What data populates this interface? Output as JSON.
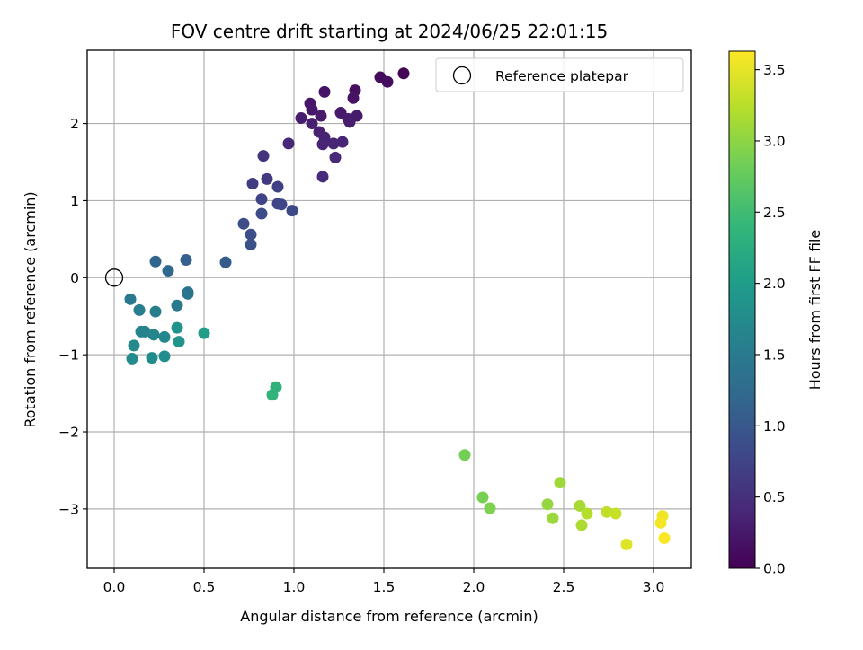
{
  "chart_data": {
    "type": "scatter",
    "title": "FOV centre drift starting at 2024/06/25 22:01:15",
    "xlabel": "Angular distance from reference (arcmin)",
    "ylabel": "Rotation from reference (arcmin)",
    "xlim": [
      -0.15,
      3.21
    ],
    "ylim": [
      -3.77,
      2.95
    ],
    "xticks": [
      0.0,
      0.5,
      1.0,
      1.5,
      2.0,
      2.5,
      3.0
    ],
    "xtick_labels": [
      "0.0",
      "0.5",
      "1.0",
      "1.5",
      "2.0",
      "2.5",
      "3.0"
    ],
    "yticks": [
      -3,
      -2,
      -1,
      0,
      1,
      2
    ],
    "ytick_labels": [
      "−3",
      "−2",
      "−1",
      "0",
      "1",
      "2"
    ],
    "grid": true,
    "legend": {
      "placement": "top-right",
      "entries": [
        "Reference platepar"
      ]
    },
    "reference_point": {
      "x": 0.0,
      "y": 0.0,
      "label": "Reference platepar"
    },
    "colorbar": {
      "label": "Hours from first FF file",
      "colormap": "viridis",
      "range": [
        0.0,
        3.63
      ],
      "ticks": [
        0.0,
        0.5,
        1.0,
        1.5,
        2.0,
        2.5,
        3.0,
        3.5
      ],
      "tick_labels": [
        "0.0",
        "0.5",
        "1.0",
        "1.5",
        "2.0",
        "2.5",
        "3.0",
        "3.5"
      ]
    },
    "points": [
      {
        "x": 1.61,
        "y": 2.65,
        "c": 0.05
      },
      {
        "x": 1.48,
        "y": 2.6,
        "c": 0.1
      },
      {
        "x": 1.52,
        "y": 2.54,
        "c": 0.12
      },
      {
        "x": 1.34,
        "y": 2.43,
        "c": 0.15
      },
      {
        "x": 1.33,
        "y": 2.33,
        "c": 0.17
      },
      {
        "x": 1.17,
        "y": 2.41,
        "c": 0.2
      },
      {
        "x": 1.09,
        "y": 2.26,
        "c": 0.22
      },
      {
        "x": 1.1,
        "y": 2.18,
        "c": 0.24
      },
      {
        "x": 1.26,
        "y": 2.14,
        "c": 0.25
      },
      {
        "x": 1.15,
        "y": 2.1,
        "c": 0.26
      },
      {
        "x": 1.35,
        "y": 2.1,
        "c": 0.27
      },
      {
        "x": 1.3,
        "y": 2.06,
        "c": 0.28
      },
      {
        "x": 1.31,
        "y": 2.02,
        "c": 0.29
      },
      {
        "x": 1.04,
        "y": 2.07,
        "c": 0.3
      },
      {
        "x": 1.1,
        "y": 2.0,
        "c": 0.31
      },
      {
        "x": 1.14,
        "y": 1.89,
        "c": 0.33
      },
      {
        "x": 1.17,
        "y": 1.82,
        "c": 0.35
      },
      {
        "x": 1.16,
        "y": 1.73,
        "c": 0.36
      },
      {
        "x": 1.22,
        "y": 1.74,
        "c": 0.37
      },
      {
        "x": 1.27,
        "y": 1.76,
        "c": 0.38
      },
      {
        "x": 0.97,
        "y": 1.74,
        "c": 0.4
      },
      {
        "x": 1.23,
        "y": 1.56,
        "c": 0.42
      },
      {
        "x": 1.16,
        "y": 1.31,
        "c": 0.45
      },
      {
        "x": 0.83,
        "y": 1.58,
        "c": 0.55
      },
      {
        "x": 0.85,
        "y": 1.28,
        "c": 0.6
      },
      {
        "x": 0.77,
        "y": 1.22,
        "c": 0.65
      },
      {
        "x": 0.91,
        "y": 1.18,
        "c": 0.68
      },
      {
        "x": 0.82,
        "y": 1.02,
        "c": 0.72
      },
      {
        "x": 0.91,
        "y": 0.96,
        "c": 0.75
      },
      {
        "x": 0.93,
        "y": 0.95,
        "c": 0.77
      },
      {
        "x": 0.99,
        "y": 0.87,
        "c": 0.8
      },
      {
        "x": 0.82,
        "y": 0.83,
        "c": 0.82
      },
      {
        "x": 0.72,
        "y": 0.7,
        "c": 0.85
      },
      {
        "x": 0.76,
        "y": 0.56,
        "c": 0.88
      },
      {
        "x": 0.76,
        "y": 0.43,
        "c": 0.9
      },
      {
        "x": 0.62,
        "y": 0.2,
        "c": 1.05
      },
      {
        "x": 0.4,
        "y": 0.23,
        "c": 1.12
      },
      {
        "x": 0.23,
        "y": 0.21,
        "c": 1.18
      },
      {
        "x": 0.3,
        "y": 0.09,
        "c": 1.22
      },
      {
        "x": 0.41,
        "y": -0.19,
        "c": 1.38
      },
      {
        "x": 0.41,
        "y": -0.21,
        "c": 1.4
      },
      {
        "x": 0.35,
        "y": -0.36,
        "c": 1.45
      },
      {
        "x": 0.09,
        "y": -0.28,
        "c": 1.48
      },
      {
        "x": 0.14,
        "y": -0.42,
        "c": 1.52
      },
      {
        "x": 0.23,
        "y": -0.44,
        "c": 1.55
      },
      {
        "x": 0.15,
        "y": -0.7,
        "c": 1.6
      },
      {
        "x": 0.17,
        "y": -0.7,
        "c": 1.62
      },
      {
        "x": 0.22,
        "y": -0.74,
        "c": 1.65
      },
      {
        "x": 0.28,
        "y": -0.77,
        "c": 1.68
      },
      {
        "x": 0.11,
        "y": -0.88,
        "c": 1.7
      },
      {
        "x": 0.1,
        "y": -1.05,
        "c": 1.72
      },
      {
        "x": 0.21,
        "y": -1.04,
        "c": 1.75
      },
      {
        "x": 0.28,
        "y": -1.02,
        "c": 1.78
      },
      {
        "x": 0.35,
        "y": -0.65,
        "c": 1.85
      },
      {
        "x": 0.36,
        "y": -0.83,
        "c": 1.88
      },
      {
        "x": 0.5,
        "y": -0.72,
        "c": 2.02
      },
      {
        "x": 0.9,
        "y": -1.42,
        "c": 2.32
      },
      {
        "x": 0.88,
        "y": -1.52,
        "c": 2.35
      },
      {
        "x": 1.95,
        "y": -2.3,
        "c": 2.85
      },
      {
        "x": 2.05,
        "y": -2.85,
        "c": 2.88
      },
      {
        "x": 2.09,
        "y": -2.99,
        "c": 2.92
      },
      {
        "x": 2.41,
        "y": -2.94,
        "c": 3.05
      },
      {
        "x": 2.44,
        "y": -3.12,
        "c": 3.08
      },
      {
        "x": 2.48,
        "y": -2.66,
        "c": 3.1
      },
      {
        "x": 2.59,
        "y": -2.96,
        "c": 3.15
      },
      {
        "x": 2.6,
        "y": -3.21,
        "c": 3.18
      },
      {
        "x": 2.63,
        "y": -3.06,
        "c": 3.22
      },
      {
        "x": 2.74,
        "y": -3.04,
        "c": 3.28
      },
      {
        "x": 2.79,
        "y": -3.06,
        "c": 3.32
      },
      {
        "x": 2.85,
        "y": -3.46,
        "c": 3.45
      },
      {
        "x": 3.05,
        "y": -3.09,
        "c": 3.55
      },
      {
        "x": 3.04,
        "y": -3.18,
        "c": 3.58
      },
      {
        "x": 3.06,
        "y": -3.38,
        "c": 3.62
      }
    ]
  }
}
